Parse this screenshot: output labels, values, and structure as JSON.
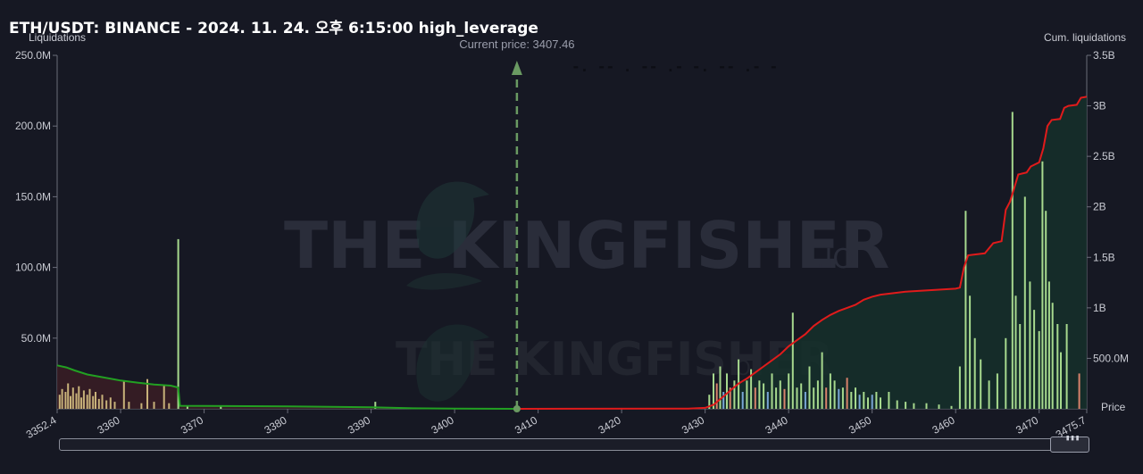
{
  "header": {
    "title": "ETH/USDT: BINANCE - 2024. 11. 24. 오후 6:15:00 high_leverage"
  },
  "watermark": {
    "text": "THE KINGFISHER",
    "suffix": ".IO"
  },
  "colors": {
    "bg": "#161823",
    "long_line": "#22a022",
    "short_line": "#e01b1b",
    "marker": "#6a9a62"
  },
  "chart_data": {
    "type": "bar",
    "left_axis": {
      "label": "Liquidations",
      "ticks": [
        "250.0M",
        "200.0M",
        "150.0M",
        "100.0M",
        "50.0M"
      ],
      "range": [
        0,
        250000000
      ]
    },
    "right_axis": {
      "label": "Cum. liquidations",
      "ticks": [
        "3.5B",
        "3B",
        "2.5B",
        "2B",
        "1.5B",
        "1B",
        "500.0M"
      ],
      "range": [
        0,
        3500000000
      ]
    },
    "x_axis": {
      "label": "Price",
      "ticks": [
        "3352.4",
        "3360",
        "3370",
        "3380",
        "3390",
        "3400",
        "3410",
        "3420",
        "3430",
        "3440",
        "3450",
        "3460",
        "3470",
        "3475.7"
      ],
      "range": [
        3352.4,
        3475.7
      ]
    },
    "current_price": {
      "label": "Current price: 3407.46",
      "value": 3407.46
    },
    "series": [
      {
        "name": "Liquidations",
        "points": [
          [
            3352.7,
            10000000,
            "y"
          ],
          [
            3353.0,
            14000000,
            "y"
          ],
          [
            3353.4,
            12000000,
            "y"
          ],
          [
            3353.7,
            18000000,
            "y"
          ],
          [
            3354.0,
            9000000,
            "y"
          ],
          [
            3354.3,
            15000000,
            "y"
          ],
          [
            3354.7,
            11000000,
            "y"
          ],
          [
            3355.0,
            16000000,
            "y"
          ],
          [
            3355.3,
            8000000,
            "y"
          ],
          [
            3355.6,
            13000000,
            "y"
          ],
          [
            3356.0,
            10000000,
            "y"
          ],
          [
            3356.3,
            14000000,
            "y"
          ],
          [
            3356.7,
            9000000,
            "y"
          ],
          [
            3357.0,
            12000000,
            "y"
          ],
          [
            3357.4,
            7000000,
            "y"
          ],
          [
            3357.8,
            10000000,
            "y"
          ],
          [
            3358.3,
            6000000,
            "y"
          ],
          [
            3358.8,
            8000000,
            "y"
          ],
          [
            3359.3,
            5000000,
            "y"
          ],
          [
            3360.4,
            20000000,
            "y"
          ],
          [
            3361.0,
            5000000,
            "y"
          ],
          [
            3362.5,
            4000000,
            "y"
          ],
          [
            3363.2,
            21000000,
            "y"
          ],
          [
            3364.0,
            5000000,
            "y"
          ],
          [
            3365.2,
            17000000,
            "y"
          ],
          [
            3365.8,
            4000000,
            "y"
          ],
          [
            3366.9,
            120000000,
            "g"
          ],
          [
            3368.0,
            2000000,
            "g"
          ],
          [
            3372.0,
            2000000,
            "g"
          ],
          [
            3390.5,
            5000000,
            "g"
          ],
          [
            3430.5,
            10000000,
            "g"
          ],
          [
            3431.0,
            25000000,
            "g"
          ],
          [
            3431.4,
            18000000,
            "r"
          ],
          [
            3431.8,
            30000000,
            "g"
          ],
          [
            3432.2,
            12000000,
            "b"
          ],
          [
            3432.6,
            25000000,
            "g"
          ],
          [
            3433.0,
            15000000,
            "r"
          ],
          [
            3433.5,
            20000000,
            "g"
          ],
          [
            3434.0,
            35000000,
            "g"
          ],
          [
            3434.5,
            12000000,
            "b"
          ],
          [
            3435.0,
            20000000,
            "g"
          ],
          [
            3435.5,
            28000000,
            "g"
          ],
          [
            3436.0,
            15000000,
            "r"
          ],
          [
            3436.5,
            20000000,
            "g"
          ],
          [
            3437.0,
            18000000,
            "g"
          ],
          [
            3437.5,
            12000000,
            "b"
          ],
          [
            3438.0,
            25000000,
            "g"
          ],
          [
            3438.5,
            15000000,
            "g"
          ],
          [
            3439.0,
            20000000,
            "g"
          ],
          [
            3439.5,
            14000000,
            "r"
          ],
          [
            3440.0,
            25000000,
            "g"
          ],
          [
            3440.5,
            68000000,
            "g"
          ],
          [
            3441.0,
            15000000,
            "g"
          ],
          [
            3441.5,
            18000000,
            "g"
          ],
          [
            3442.0,
            12000000,
            "b"
          ],
          [
            3442.5,
            30000000,
            "g"
          ],
          [
            3443.0,
            15000000,
            "g"
          ],
          [
            3443.5,
            20000000,
            "g"
          ],
          [
            3444.0,
            40000000,
            "g"
          ],
          [
            3444.5,
            15000000,
            "r"
          ],
          [
            3445.0,
            25000000,
            "g"
          ],
          [
            3445.5,
            20000000,
            "g"
          ],
          [
            3446.0,
            14000000,
            "b"
          ],
          [
            3446.5,
            15000000,
            "g"
          ],
          [
            3447.0,
            22000000,
            "r"
          ],
          [
            3447.5,
            12000000,
            "g"
          ],
          [
            3448.0,
            15000000,
            "g"
          ],
          [
            3448.5,
            10000000,
            "b"
          ],
          [
            3449.0,
            12000000,
            "g"
          ],
          [
            3449.5,
            8000000,
            "g"
          ],
          [
            3450.0,
            10000000,
            "b"
          ],
          [
            3450.5,
            12000000,
            "g"
          ],
          [
            3451.0,
            8000000,
            "g"
          ],
          [
            3452.0,
            12000000,
            "g"
          ],
          [
            3453.0,
            6000000,
            "g"
          ],
          [
            3454.0,
            5000000,
            "g"
          ],
          [
            3455.0,
            4000000,
            "g"
          ],
          [
            3456.5,
            4000000,
            "g"
          ],
          [
            3458.0,
            3000000,
            "g"
          ],
          [
            3459.5,
            2000000,
            "g"
          ],
          [
            3460.5,
            30000000,
            "g"
          ],
          [
            3461.2,
            140000000,
            "g"
          ],
          [
            3461.7,
            80000000,
            "g"
          ],
          [
            3462.3,
            50000000,
            "g"
          ],
          [
            3463.0,
            35000000,
            "g"
          ],
          [
            3464.0,
            20000000,
            "g"
          ],
          [
            3465.0,
            25000000,
            "g"
          ],
          [
            3466.0,
            50000000,
            "g"
          ],
          [
            3466.8,
            210000000,
            "g"
          ],
          [
            3467.2,
            80000000,
            "g"
          ],
          [
            3467.7,
            60000000,
            "g"
          ],
          [
            3468.3,
            150000000,
            "g"
          ],
          [
            3468.9,
            90000000,
            "g"
          ],
          [
            3469.4,
            70000000,
            "g"
          ],
          [
            3470.0,
            55000000,
            "g"
          ],
          [
            3470.4,
            175000000,
            "g"
          ],
          [
            3470.8,
            140000000,
            "g"
          ],
          [
            3471.2,
            90000000,
            "g"
          ],
          [
            3471.6,
            75000000,
            "g"
          ],
          [
            3472.2,
            60000000,
            "g"
          ],
          [
            3472.6,
            40000000,
            "g"
          ],
          [
            3473.3,
            60000000,
            "g"
          ],
          [
            3474.8,
            25000000,
            "r"
          ]
        ]
      },
      {
        "name": "Cum. liquidations (long)",
        "points": [
          [
            3352.4,
            430000000
          ],
          [
            3353.5,
            410000000
          ],
          [
            3354.5,
            380000000
          ],
          [
            3356.0,
            340000000
          ],
          [
            3358.0,
            310000000
          ],
          [
            3360.0,
            280000000
          ],
          [
            3362.0,
            260000000
          ],
          [
            3364.0,
            240000000
          ],
          [
            3366.0,
            230000000
          ],
          [
            3366.9,
            210000000
          ],
          [
            3367.1,
            30000000
          ],
          [
            3380.0,
            25000000
          ],
          [
            3390.0,
            15000000
          ],
          [
            3395.0,
            5000000
          ],
          [
            3400.0,
            3000000
          ],
          [
            3407.46,
            0
          ]
        ]
      },
      {
        "name": "Cum. liquidations (short)",
        "points": [
          [
            3407.46,
            0
          ],
          [
            3428.0,
            3000000
          ],
          [
            3430.0,
            10000000
          ],
          [
            3431.0,
            40000000
          ],
          [
            3432.0,
            110000000
          ],
          [
            3433.0,
            180000000
          ],
          [
            3434.0,
            250000000
          ],
          [
            3435.0,
            300000000
          ],
          [
            3436.0,
            360000000
          ],
          [
            3437.0,
            420000000
          ],
          [
            3438.0,
            480000000
          ],
          [
            3439.0,
            540000000
          ],
          [
            3440.0,
            620000000
          ],
          [
            3441.0,
            680000000
          ],
          [
            3442.0,
            740000000
          ],
          [
            3443.0,
            820000000
          ],
          [
            3444.0,
            880000000
          ],
          [
            3445.0,
            930000000
          ],
          [
            3446.0,
            970000000
          ],
          [
            3447.0,
            1000000000
          ],
          [
            3448.0,
            1030000000
          ],
          [
            3449.0,
            1080000000
          ],
          [
            3450.0,
            1110000000
          ],
          [
            3451.0,
            1130000000
          ],
          [
            3452.0,
            1140000000
          ],
          [
            3454.0,
            1160000000
          ],
          [
            3456.0,
            1170000000
          ],
          [
            3458.0,
            1180000000
          ],
          [
            3460.0,
            1190000000
          ],
          [
            3460.5,
            1200000000
          ],
          [
            3461.0,
            1400000000
          ],
          [
            3461.5,
            1520000000
          ],
          [
            3462.5,
            1530000000
          ],
          [
            3463.5,
            1540000000
          ],
          [
            3464.5,
            1640000000
          ],
          [
            3465.5,
            1660000000
          ],
          [
            3466.0,
            1970000000
          ],
          [
            3466.5,
            2050000000
          ],
          [
            3467.0,
            2180000000
          ],
          [
            3467.5,
            2320000000
          ],
          [
            3468.5,
            2340000000
          ],
          [
            3469.0,
            2400000000
          ],
          [
            3470.0,
            2440000000
          ],
          [
            3470.5,
            2580000000
          ],
          [
            3471.0,
            2800000000
          ],
          [
            3471.5,
            2860000000
          ],
          [
            3472.5,
            2870000000
          ],
          [
            3473.0,
            2980000000
          ],
          [
            3473.5,
            3000000000
          ],
          [
            3474.5,
            3010000000
          ],
          [
            3475.0,
            3080000000
          ],
          [
            3475.7,
            3090000000
          ]
        ]
      }
    ]
  }
}
